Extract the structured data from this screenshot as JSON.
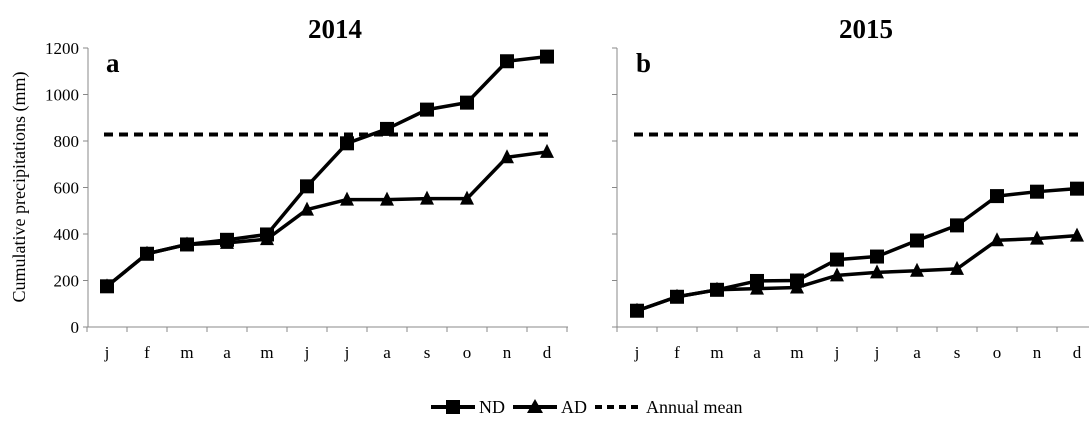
{
  "chart_data": [
    {
      "type": "line",
      "panel": "a",
      "title": "2014",
      "categories": [
        "j",
        "f",
        "m",
        "a",
        "m",
        "j",
        "j",
        "a",
        "s",
        "o",
        "n",
        "d"
      ],
      "ylabel": "Cumulative precipitations (mm)",
      "ylim": [
        0,
        1200
      ],
      "yticks": [
        "0",
        "200",
        "400",
        "600",
        "800",
        "1000",
        "1200"
      ],
      "grid": false,
      "series": [
        {
          "name": "ND",
          "marker": "square",
          "values": [
            175,
            315,
            355,
            375,
            398,
            605,
            790,
            852,
            935,
            965,
            1143,
            1163
          ]
        },
        {
          "name": "AD",
          "marker": "triangle",
          "values": [
            175,
            315,
            355,
            362,
            378,
            505,
            548,
            548,
            552,
            552,
            730,
            753
          ]
        },
        {
          "name": "Annual mean",
          "style": "dashed",
          "values": [
            828,
            828,
            828,
            828,
            828,
            828,
            828,
            828,
            828,
            828,
            828,
            828
          ]
        }
      ]
    },
    {
      "type": "line",
      "panel": "b",
      "title": "2015",
      "categories": [
        "j",
        "f",
        "m",
        "a",
        "m",
        "j",
        "j",
        "a",
        "s",
        "o",
        "n",
        "d"
      ],
      "ylabel": "",
      "ylim": [
        0,
        1200
      ],
      "grid": false,
      "series": [
        {
          "name": "ND",
          "marker": "square",
          "values": [
            70,
            130,
            160,
            198,
            200,
            290,
            303,
            372,
            437,
            563,
            582,
            595
          ]
        },
        {
          "name": "AD",
          "marker": "triangle",
          "values": [
            70,
            130,
            160,
            165,
            170,
            222,
            235,
            242,
            250,
            373,
            380,
            393
          ]
        },
        {
          "name": "Annual mean",
          "style": "dashed",
          "values": [
            828,
            828,
            828,
            828,
            828,
            828,
            828,
            828,
            828,
            828,
            828,
            828
          ]
        }
      ]
    }
  ],
  "legend": {
    "placement": "bottom-center",
    "items": [
      "ND",
      "AD",
      "Annual mean"
    ]
  },
  "colors": {
    "line": "#000000",
    "axis": "#888888"
  }
}
